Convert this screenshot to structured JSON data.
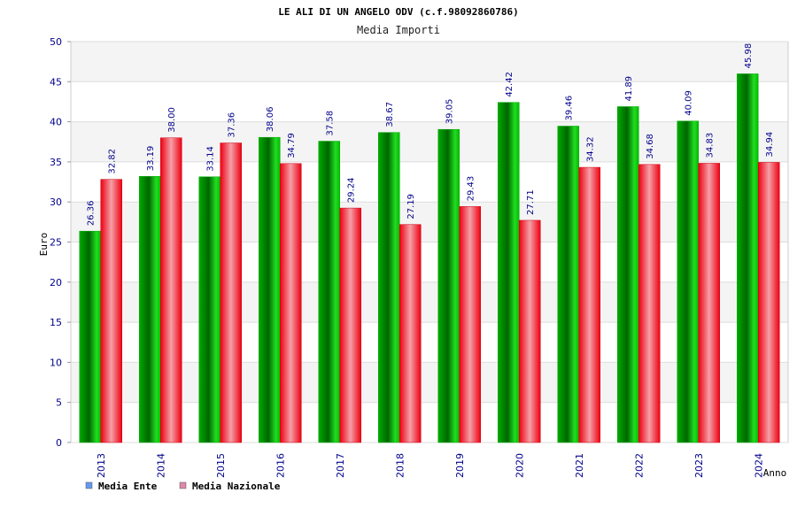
{
  "chart_data": {
    "type": "bar",
    "title": "LE ALI DI UN ANGELO ODV (c.f.98092860786)",
    "subtitle": "Media Importi",
    "ylabel": "Euro",
    "xlabel": "Anno",
    "ylim": [
      0,
      50
    ],
    "yticks": [
      0,
      5,
      10,
      15,
      20,
      25,
      30,
      35,
      40,
      45,
      50
    ],
    "categories": [
      "2013",
      "2014",
      "2015",
      "2016",
      "2017",
      "2018",
      "2019",
      "2020",
      "2021",
      "2022",
      "2023",
      "2024"
    ],
    "series": [
      {
        "name": "Media Ente",
        "color": "#00cc00",
        "legend_color": "#6699ee",
        "values": [
          26.36,
          33.19,
          33.14,
          38.06,
          37.58,
          38.67,
          39.05,
          42.42,
          39.46,
          41.89,
          40.09,
          45.98
        ],
        "labels": [
          "26.36",
          "33.19",
          "33.14",
          "38.06",
          "37.58",
          "38.67",
          "39.05",
          "42.42",
          "39.46",
          "41.89",
          "40.09",
          "45.98"
        ]
      },
      {
        "name": "Media Nazionale",
        "color": "#ee1122",
        "legend_color": "#dd88aa",
        "values": [
          32.82,
          38.0,
          37.36,
          34.79,
          29.24,
          27.19,
          29.43,
          27.71,
          34.32,
          34.68,
          34.83,
          34.94
        ],
        "labels": [
          "32.82",
          "38.00",
          "37.36",
          "34.79",
          "29.24",
          "27.19",
          "29.43",
          "27.71",
          "34.32",
          "34.68",
          "34.83",
          "34.94"
        ]
      }
    ],
    "grid": true,
    "legend_position": "bottom-left"
  }
}
